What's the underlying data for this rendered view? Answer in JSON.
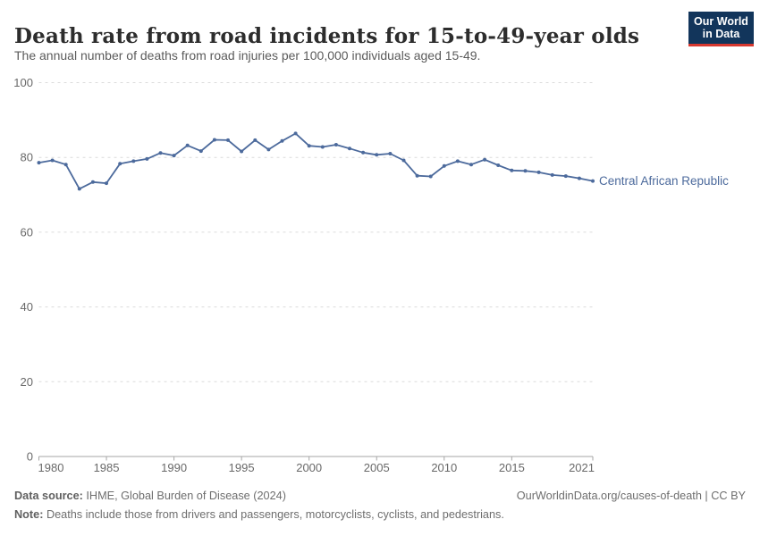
{
  "header": {
    "title": "Death rate from road incidents for 15-to-49-year olds",
    "subtitle": "The annual number of deaths from road injuries per 100,000 individuals aged 15-49.",
    "logo": {
      "line1": "Our World",
      "line2": "in Data"
    }
  },
  "chart_data": {
    "type": "line",
    "title": "Death rate from road incidents for 15-to-49-year olds",
    "xlabel": "",
    "ylabel": "",
    "x": [
      1980,
      1981,
      1982,
      1983,
      1984,
      1985,
      1986,
      1987,
      1988,
      1989,
      1990,
      1991,
      1992,
      1993,
      1994,
      1995,
      1996,
      1997,
      1998,
      1999,
      2000,
      2001,
      2002,
      2003,
      2004,
      2005,
      2006,
      2007,
      2008,
      2009,
      2010,
      2011,
      2012,
      2013,
      2014,
      2015,
      2016,
      2017,
      2018,
      2019,
      2020,
      2021
    ],
    "series": [
      {
        "name": "Central African Republic",
        "values": [
          78.6,
          79.2,
          78.1,
          71.6,
          73.4,
          73.1,
          78.3,
          79.0,
          79.6,
          81.2,
          80.5,
          83.2,
          81.7,
          84.7,
          84.6,
          81.6,
          84.6,
          82.1,
          84.4,
          86.4,
          83.1,
          82.8,
          83.4,
          82.4,
          81.3,
          80.7,
          81.0,
          79.2,
          75.1,
          74.9,
          77.7,
          79.0,
          78.1,
          79.4,
          77.9,
          76.5,
          76.4,
          76.0,
          75.3,
          75.0,
          74.4,
          73.7
        ]
      }
    ],
    "ylim": [
      0,
      100
    ],
    "yticks": [
      0,
      20,
      40,
      60,
      80,
      100
    ],
    "xticks": [
      1980,
      1985,
      1990,
      1995,
      2000,
      2005,
      2010,
      2015,
      2021
    ],
    "grid": "horizontal-dashed",
    "legend_position": "end-of-line-label",
    "markers": true
  },
  "footer": {
    "datasource_label": "Data source:",
    "datasource_text": " IHME, Global Burden of Disease (2024)",
    "note_label": "Note:",
    "note_text": " Deaths include those from drivers and passengers, motorcyclists, cyclists, and pedestrians.",
    "link": "OurWorldinData.org/causes-of-death | CC BY"
  },
  "colors": {
    "line": "#4c6a9c",
    "series_label": "#4c6a9c",
    "grid": "#dcdcdc",
    "axis": "#a6a6a6",
    "tick_text": "#696969",
    "logo_bg": "#12355b",
    "logo_accent": "#d7382f"
  }
}
